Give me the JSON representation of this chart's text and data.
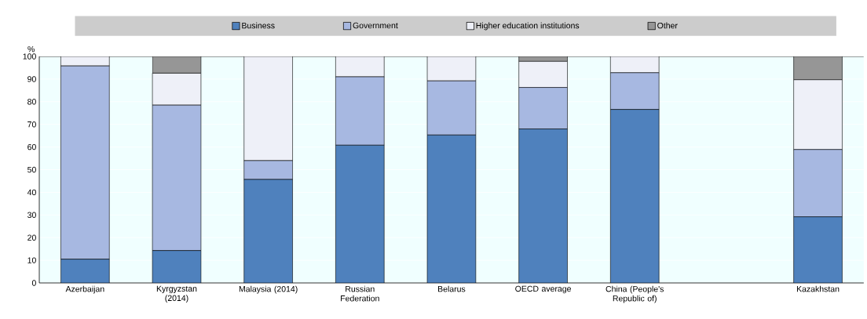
{
  "chart_data": {
    "type": "bar",
    "stacked": true,
    "ylabel": "%",
    "categories": [
      "Azerbaijan",
      "Kyrgyzstan (2014)",
      "Malaysia (2014)",
      "Russian Federation",
      "Belarus",
      "OECD average",
      "China (People's Republic of)",
      null,
      "Kazakhstan"
    ],
    "series": [
      {
        "name": "Business",
        "color": "#4f81bd",
        "values": [
          10.5,
          14.3,
          45.7,
          60.8,
          65.3,
          68.0,
          76.6,
          null,
          29.2
        ]
      },
      {
        "name": "Government",
        "color": "#a7b8e1",
        "values": [
          85.3,
          64.2,
          8.3,
          30.2,
          23.9,
          18.3,
          16.2,
          null,
          29.7
        ]
      },
      {
        "name": "Higher education institutions",
        "color": "#eef0f8",
        "values": [
          4.2,
          14.1,
          46.0,
          9.0,
          10.8,
          11.5,
          7.2,
          null,
          30.8
        ]
      },
      {
        "name": "Other",
        "color": "#969696",
        "values": [
          0,
          7.4,
          0,
          0,
          0,
          2.2,
          0,
          null,
          10.3
        ]
      }
    ],
    "ylim": [
      0,
      100
    ],
    "yticks": [
      0,
      10,
      20,
      30,
      40,
      50,
      60,
      70,
      80,
      90,
      100
    ],
    "grid": "y",
    "legend": "top"
  }
}
